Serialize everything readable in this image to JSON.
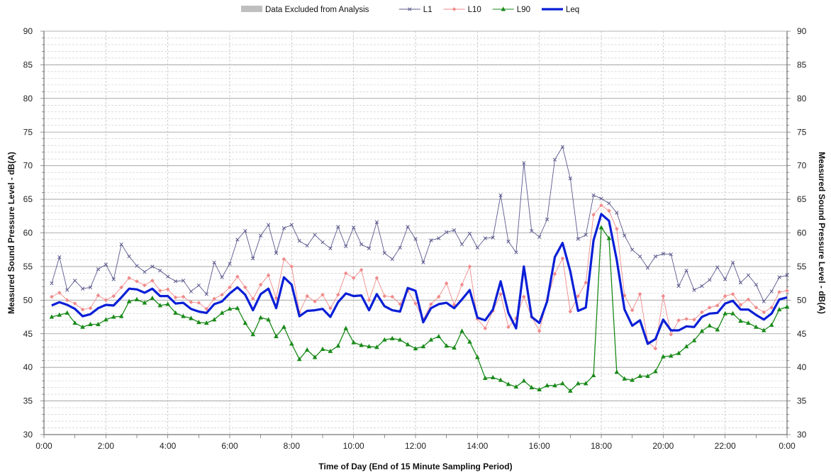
{
  "chart_data": {
    "type": "line",
    "xlabel": "Time of Day (End of 15 Minute Sampling Period)",
    "ylabel": "Measured Sound Pressure Level - dB(A)",
    "ylabel_right": "Measured Sound Pressure Level - dB(A)",
    "ylim": [
      30,
      90
    ],
    "y_ticks": [
      30,
      35,
      40,
      45,
      50,
      55,
      60,
      65,
      70,
      75,
      80,
      85,
      90
    ],
    "y_minor_step": 1,
    "xlim_hours": [
      0,
      24
    ],
    "x_ticks": [
      "0:00",
      "2:00",
      "4:00",
      "6:00",
      "8:00",
      "10:00",
      "12:00",
      "14:00",
      "16:00",
      "18:00",
      "20:00",
      "22:00",
      "0:00"
    ],
    "x_interval_hours": 0.25,
    "x_start_hours": 0.25,
    "grid": true,
    "legend_position": "top-center",
    "legend": [
      {
        "label": "Data Excluded from Analysis",
        "kind": "band",
        "color": "#bfbfbf"
      },
      {
        "label": "L1",
        "kind": "line",
        "color": "#5c5a8e",
        "marker": "x"
      },
      {
        "label": "L10",
        "kind": "line",
        "color": "#f08a8a",
        "marker": "diamond"
      },
      {
        "label": "L90",
        "kind": "line",
        "color": "#1a8a1a",
        "marker": "triangle"
      },
      {
        "label": "Leq",
        "kind": "line",
        "color": "#0a1fd6",
        "marker": "none"
      }
    ],
    "series": [
      {
        "name": "L1",
        "color": "#5c5a8e",
        "marker": "x",
        "width": 0.9,
        "values": [
          52.5,
          56.4,
          51.5,
          52.9,
          51.7,
          51.9,
          54.6,
          55.3,
          53.1,
          58.3,
          56.5,
          55.1,
          54.2,
          55.0,
          54.4,
          53.5,
          52.8,
          52.9,
          51.3,
          52.2,
          50.9,
          55.6,
          53.4,
          55.4,
          59.0,
          60.3,
          56.2,
          59.6,
          61.2,
          57.0,
          60.7,
          61.2,
          58.8,
          58.1,
          59.7,
          58.6,
          57.7,
          60.9,
          58.0,
          60.8,
          58.3,
          57.7,
          61.6,
          57.0,
          56.1,
          57.8,
          60.9,
          59.1,
          55.6,
          58.9,
          59.2,
          60.1,
          60.4,
          58.3,
          59.9,
          57.8,
          59.2,
          59.3,
          65.6,
          58.7,
          57.1,
          70.4,
          60.3,
          59.4,
          62.0,
          70.9,
          72.8,
          68.1,
          59.1,
          59.7,
          65.6,
          65.1,
          64.4,
          63.0,
          59.6,
          57.5,
          56.5,
          54.8,
          56.5,
          56.9,
          56.8,
          52.1,
          54.4,
          51.5,
          52.1,
          53.0,
          54.9,
          53.1,
          55.6,
          52.6,
          53.7,
          52.3,
          49.8,
          51.3,
          53.4,
          53.7
        ]
      },
      {
        "name": "L10",
        "color": "#f08a8a",
        "marker": "diamond",
        "width": 0.9,
        "values": [
          50.5,
          51.1,
          50.0,
          49.5,
          48.6,
          48.8,
          50.7,
          50.0,
          50.6,
          51.9,
          53.3,
          52.8,
          52.2,
          52.9,
          51.4,
          51.6,
          50.4,
          50.5,
          49.7,
          49.6,
          48.7,
          50.2,
          50.8,
          51.9,
          53.5,
          51.9,
          50.2,
          52.3,
          53.7,
          50.3,
          56.1,
          55.0,
          48.2,
          50.6,
          49.8,
          50.8,
          48.8,
          50.8,
          54.0,
          53.3,
          54.5,
          50.0,
          53.3,
          50.6,
          50.5,
          49.4,
          51.4,
          49.5,
          47.1,
          49.4,
          50.5,
          52.5,
          49.3,
          52.3,
          55.0,
          47.2,
          45.8,
          48.4,
          50.9,
          46.0,
          47.3,
          50.5,
          47.5,
          45.4,
          50.0,
          53.9,
          56.2,
          48.3,
          50.6,
          52.6,
          62.7,
          64.1,
          63.3,
          60.6,
          50.7,
          48.5,
          50.9,
          43.8,
          42.8,
          50.6,
          44.9,
          47.0,
          47.2,
          47.1,
          48.2,
          48.9,
          49.2,
          50.6,
          50.9,
          49.3,
          50.1,
          48.9,
          48.2,
          48.9,
          51.2,
          51.4
        ]
      },
      {
        "name": "L90",
        "color": "#1a8a1a",
        "marker": "triangle",
        "width": 1.3,
        "values": [
          47.5,
          47.8,
          48.1,
          46.6,
          46.0,
          46.4,
          46.4,
          47.1,
          47.5,
          47.6,
          49.8,
          50.1,
          49.6,
          50.3,
          49.2,
          49.4,
          48.1,
          47.6,
          47.3,
          46.7,
          46.6,
          47.1,
          48.1,
          48.7,
          48.8,
          46.6,
          44.9,
          47.4,
          47.1,
          44.6,
          46.0,
          43.5,
          41.2,
          42.6,
          41.5,
          42.7,
          42.4,
          43.2,
          45.8,
          43.7,
          43.3,
          43.1,
          43.0,
          44.1,
          44.3,
          44.1,
          43.4,
          42.8,
          43.1,
          44.1,
          44.6,
          43.2,
          42.9,
          45.4,
          43.8,
          41.5,
          38.4,
          38.5,
          38.1,
          37.5,
          37.1,
          38.0,
          37.0,
          36.7,
          37.3,
          37.3,
          37.6,
          36.5,
          37.6,
          37.6,
          38.8,
          60.8,
          59.2,
          39.3,
          38.3,
          38.1,
          38.7,
          38.7,
          39.4,
          41.6,
          41.7,
          42.1,
          43.1,
          44.0,
          45.4,
          46.2,
          45.6,
          48.0,
          48.0,
          46.9,
          46.6,
          46.0,
          45.5,
          46.3,
          48.6,
          49.0
        ]
      },
      {
        "name": "Leq",
        "color": "#0a1fd6",
        "marker": "none",
        "width": 3.2,
        "values": [
          49.2,
          49.7,
          49.3,
          48.7,
          47.6,
          47.9,
          48.8,
          49.3,
          49.2,
          50.4,
          51.7,
          51.6,
          51.1,
          51.7,
          50.6,
          50.6,
          49.5,
          49.6,
          48.7,
          48.3,
          48.1,
          49.4,
          49.8,
          51.0,
          51.9,
          50.8,
          48.5,
          50.9,
          51.7,
          48.8,
          53.4,
          52.3,
          47.6,
          48.4,
          48.5,
          48.7,
          47.5,
          49.7,
          51.0,
          50.6,
          50.7,
          48.5,
          50.9,
          49.1,
          48.5,
          48.3,
          51.8,
          51.4,
          46.7,
          48.8,
          49.4,
          49.6,
          48.8,
          50.1,
          51.5,
          47.4,
          47.0,
          48.6,
          52.8,
          48.1,
          45.8,
          55.0,
          47.5,
          46.6,
          49.8,
          56.4,
          58.5,
          54.3,
          48.4,
          48.9,
          58.9,
          62.8,
          61.8,
          56.0,
          48.6,
          46.2,
          47.0,
          43.5,
          44.2,
          47.1,
          45.5,
          45.5,
          46.1,
          46.0,
          47.5,
          48.0,
          48.1,
          49.5,
          49.9,
          48.6,
          48.6,
          47.8,
          47.1,
          48.0,
          50.1,
          50.4
        ]
      }
    ]
  }
}
